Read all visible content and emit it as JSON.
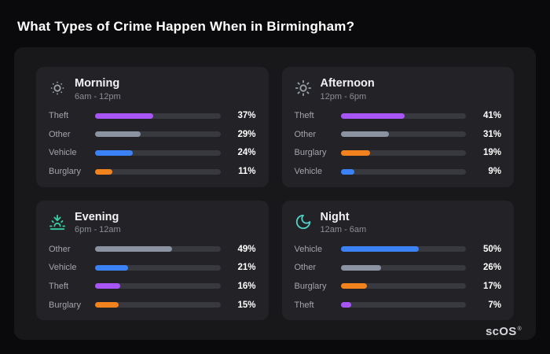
{
  "title": "What Types of Crime Happen When in Birmingham?",
  "brand": {
    "text": "scOS",
    "mark": "®"
  },
  "colors": {
    "Theft": "#a855f7",
    "Other": "#8b93a3",
    "Vehicle": "#3b82f6",
    "Burglary": "#f2821d"
  },
  "chart_data": [
    {
      "type": "bar",
      "title": "Morning",
      "subtitle": "6am - 12pm",
      "icon": "sun-dim-icon",
      "icon_color": "#9aa0a8",
      "unit": "%",
      "categories": [
        "Theft",
        "Other",
        "Vehicle",
        "Burglary"
      ],
      "values": [
        37,
        29,
        24,
        11
      ]
    },
    {
      "type": "bar",
      "title": "Afternoon",
      "subtitle": "12pm - 6pm",
      "icon": "sun-icon",
      "icon_color": "#9aa0a8",
      "unit": "%",
      "categories": [
        "Theft",
        "Other",
        "Burglary",
        "Vehicle"
      ],
      "values": [
        41,
        31,
        19,
        9
      ]
    },
    {
      "type": "bar",
      "title": "Evening",
      "subtitle": "6pm - 12am",
      "icon": "sunset-icon",
      "icon_color": "#35cfa6",
      "unit": "%",
      "categories": [
        "Other",
        "Vehicle",
        "Theft",
        "Burglary"
      ],
      "values": [
        49,
        21,
        16,
        15
      ]
    },
    {
      "type": "bar",
      "title": "Night",
      "subtitle": "12am - 6am",
      "icon": "moon-icon",
      "icon_color": "#4fd1c5",
      "unit": "%",
      "categories": [
        "Vehicle",
        "Other",
        "Burglary",
        "Theft"
      ],
      "values": [
        50,
        26,
        17,
        7
      ]
    }
  ]
}
